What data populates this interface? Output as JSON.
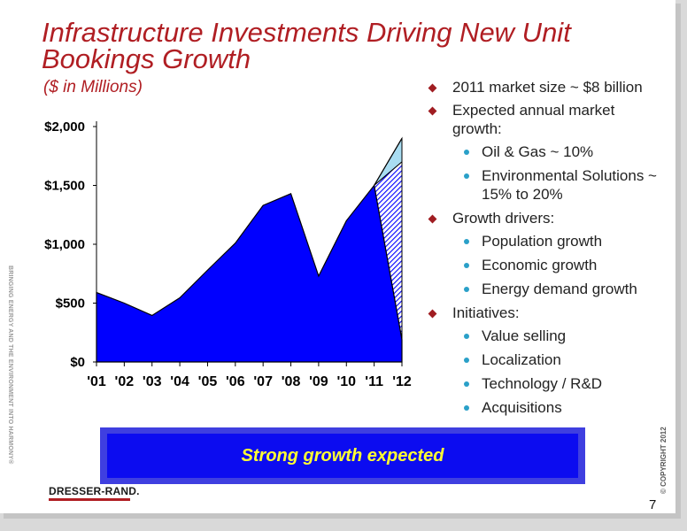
{
  "title": "Infrastructure Investments Driving New Unit Bookings Growth",
  "subtitle": "($ in Millions)",
  "side_text_left": "BRINGING ENERGY AND THE ENVIRONMENT INTO HARMONY®",
  "side_text_right": "© COPYRIGHT 2012",
  "bullets": [
    {
      "text": "2011 market size ~ $8 billion",
      "sub": []
    },
    {
      "text": "Expected annual market growth:",
      "sub": [
        "Oil & Gas ~ 10%",
        "Environmental Solutions ~ 15% to 20%"
      ]
    },
    {
      "text": "Growth drivers:",
      "sub": [
        "Population growth",
        "Economic growth",
        "Energy demand growth"
      ]
    },
    {
      "text": "Initiatives:",
      "sub": [
        "Value selling",
        "Localization",
        "Technology / R&D",
        "Acquisitions"
      ]
    }
  ],
  "banner_text": "Strong growth expected",
  "logo_text": "DRESSER-RAND.",
  "page_number": "7",
  "colors": {
    "title": "#b01e23",
    "area": "#0000ff",
    "banner": "#0c0cf0",
    "banner_text": "#ffff33",
    "bullet": "#a01d22",
    "sub_bullet": "#2aa0c8",
    "projection_band": "#a9ddf2"
  },
  "chart_data": {
    "type": "area",
    "x": [
      "'01",
      "'02",
      "'03",
      "'04",
      "'05",
      "'06",
      "'07",
      "'08",
      "'09",
      "'10",
      "'11",
      "'12"
    ],
    "values": [
      590,
      500,
      395,
      545,
      780,
      1010,
      1330,
      1430,
      730,
      1200,
      1500,
      190
    ],
    "projection": {
      "from": "'11",
      "to": "'12",
      "low": 1700,
      "high": 1900,
      "hatched": true
    },
    "ylim": [
      0,
      2000
    ],
    "yticks": [
      "$0",
      "$500",
      "$1,000",
      "$1,500",
      "$2,000"
    ],
    "ytick_values": [
      0,
      500,
      1000,
      1500,
      2000
    ],
    "xlabel": "",
    "ylabel": ""
  }
}
